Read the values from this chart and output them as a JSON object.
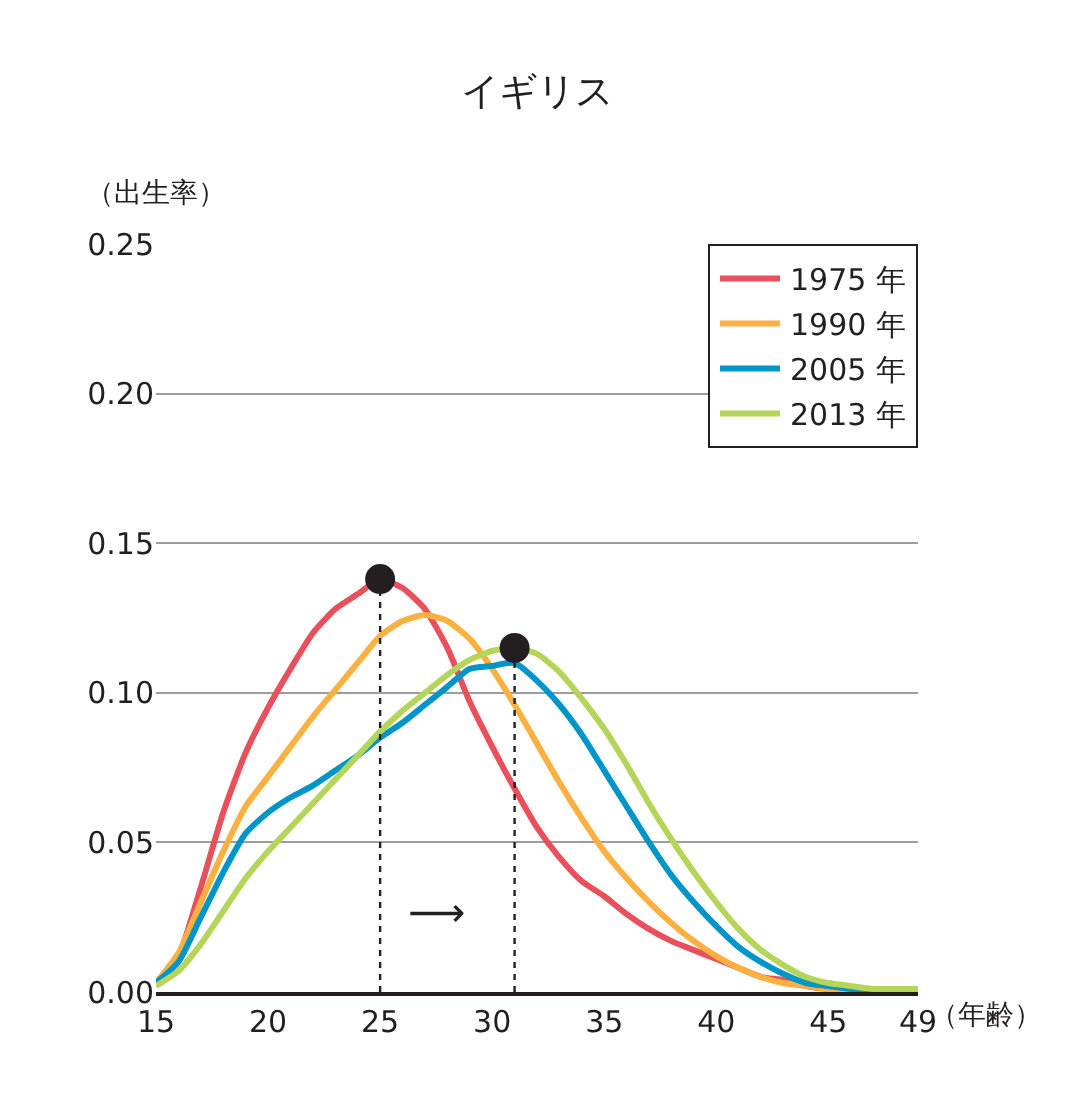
{
  "chart_data": {
    "type": "line",
    "title": "イギリス",
    "xlabel": "（年齢）",
    "ylabel": "（出生率）",
    "x": [
      15,
      16,
      17,
      18,
      19,
      20,
      21,
      22,
      23,
      24,
      25,
      26,
      27,
      28,
      29,
      30,
      31,
      32,
      33,
      34,
      35,
      36,
      37,
      38,
      39,
      40,
      41,
      42,
      43,
      44,
      45,
      46,
      47,
      48,
      49
    ],
    "series": [
      {
        "name": "1975 年",
        "color": "#e8505b",
        "values": [
          0.003,
          0.012,
          0.035,
          0.06,
          0.08,
          0.095,
          0.108,
          0.12,
          0.128,
          0.133,
          0.138,
          0.135,
          0.128,
          0.115,
          0.097,
          0.082,
          0.068,
          0.055,
          0.045,
          0.037,
          0.032,
          0.026,
          0.021,
          0.017,
          0.014,
          0.011,
          0.008,
          0.005,
          0.004,
          0.002,
          0.001,
          0.001,
          null,
          null,
          null
        ]
      },
      {
        "name": "1990 年",
        "color": "#fbb040",
        "values": [
          0.003,
          0.013,
          0.03,
          0.047,
          0.062,
          0.072,
          0.082,
          0.092,
          0.101,
          0.11,
          0.119,
          0.124,
          0.126,
          0.124,
          0.118,
          0.108,
          0.096,
          0.083,
          0.07,
          0.058,
          0.047,
          0.038,
          0.03,
          0.023,
          0.017,
          0.012,
          0.008,
          0.005,
          0.003,
          0.002,
          0.001,
          0.001,
          0,
          null,
          null
        ]
      },
      {
        "name": "2005 年",
        "color": "#0095c8",
        "values": [
          0.003,
          0.01,
          0.025,
          0.04,
          0.053,
          0.06,
          0.065,
          0.069,
          0.074,
          0.079,
          0.085,
          0.09,
          0.096,
          0.102,
          0.108,
          0.109,
          0.11,
          0.104,
          0.096,
          0.086,
          0.074,
          0.062,
          0.05,
          0.039,
          0.03,
          0.022,
          0.015,
          0.01,
          0.006,
          0.003,
          0.002,
          0.001,
          0,
          0,
          0
        ]
      },
      {
        "name": "2013 年",
        "color": "#b5d55a",
        "values": [
          0.002,
          0.007,
          0.016,
          0.027,
          0.038,
          0.047,
          0.055,
          0.063,
          0.071,
          0.079,
          0.087,
          0.094,
          0.1,
          0.106,
          0.111,
          0.114,
          0.115,
          0.113,
          0.107,
          0.098,
          0.088,
          0.076,
          0.063,
          0.051,
          0.04,
          0.03,
          0.021,
          0.014,
          0.009,
          0.005,
          0.003,
          0.002,
          0.001,
          0.001,
          0.001
        ]
      },
      {
        "type": "scatter",
        "color": "#231f20",
        "marker": "circle",
        "line_style": "dotted",
        "values": [
          null,
          null,
          null,
          null,
          null,
          null,
          null,
          null,
          null,
          null,
          0.138,
          null,
          null,
          null,
          null,
          null,
          0.115,
          null,
          null,
          null,
          null,
          null,
          null,
          null,
          null,
          null,
          null,
          null,
          null,
          null,
          null,
          null,
          null,
          null,
          null
        ],
        "errors": [
          null,
          null,
          null,
          null,
          null,
          null,
          null,
          null,
          null,
          null,
          [
            0,
            0.138
          ],
          null,
          null,
          null,
          null,
          null,
          [
            0,
            0.115
          ],
          null,
          null,
          null,
          null,
          null,
          null,
          null,
          null,
          null,
          null,
          null,
          null,
          null,
          null,
          null,
          null,
          null,
          null
        ]
      }
    ],
    "annotations": [
      "⟶"
    ],
    "xlim": [
      15,
      49
    ],
    "xticks": [
      15,
      20,
      25,
      30,
      35,
      40,
      45,
      49
    ],
    "ylim": [
      0,
      0.25
    ],
    "yticks": [
      {
        "value": 0,
        "label": "0.00"
      },
      {
        "value": 0.05,
        "label": "0.05"
      },
      {
        "value": 0.1,
        "label": "0.10"
      },
      {
        "value": 0.15,
        "label": "0.15"
      },
      {
        "value": 0.2,
        "label": "0.20"
      },
      {
        "value": 0.25,
        "label": "0.25"
      }
    ],
    "grid": "y",
    "legend": "top right",
    "line_style": "solid",
    "marker": "none"
  }
}
